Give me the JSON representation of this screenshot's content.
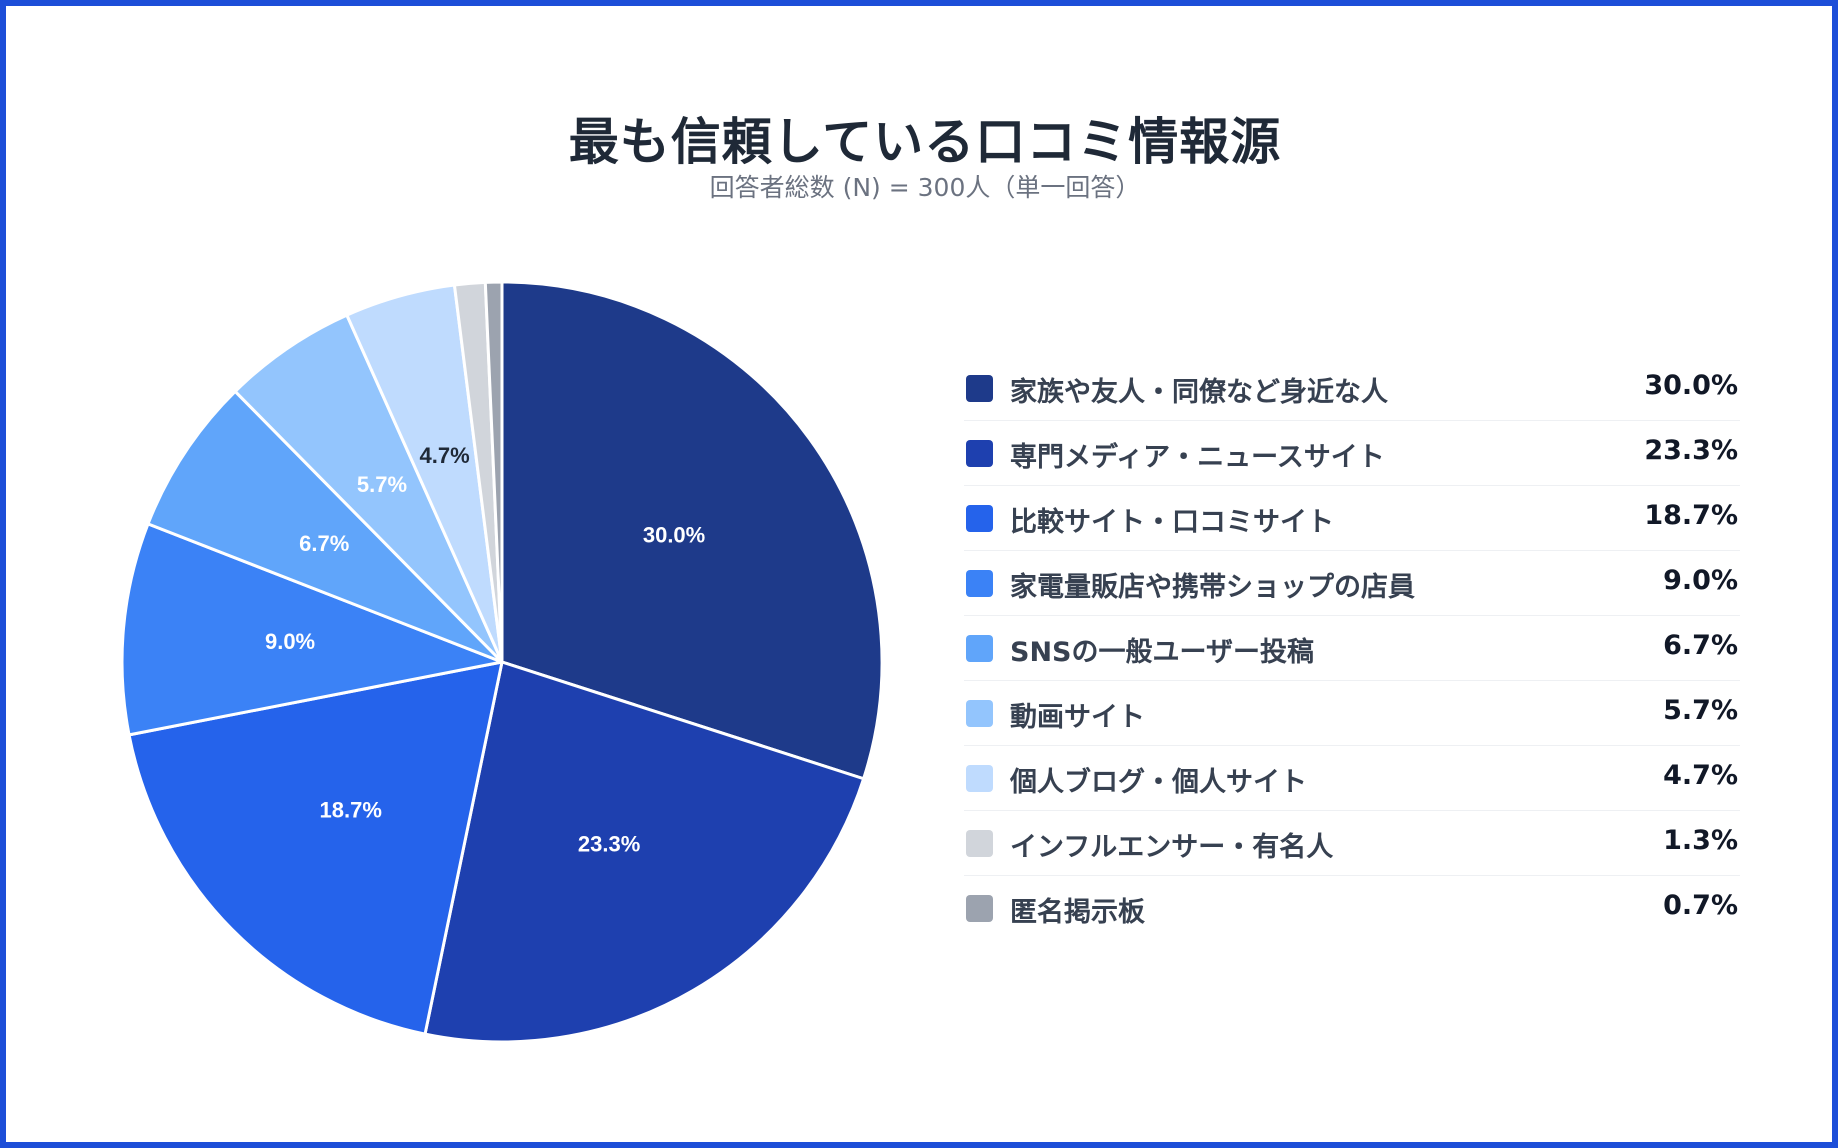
{
  "chart_data": {
    "type": "pie",
    "title": "最も信頼している口コミ情報源",
    "subtitle": "回答者総数 (N) = 300人（単一回答）",
    "categories": [
      "家族や友人・同僚など身近な人",
      "専門メディア・ニュースサイト",
      "比較サイト・口コミサイト",
      "家電量販店や携帯ショップの店員",
      "SNSの一般ユーザー投稿",
      "動画サイト",
      "個人ブログ・個人サイト",
      "インフルエンサー・有名人",
      "匿名掲示板"
    ],
    "values": [
      30.0,
      23.3,
      18.7,
      9.0,
      6.7,
      5.7,
      4.7,
      1.3,
      0.7
    ],
    "value_labels": [
      "30.0%",
      "23.3%",
      "18.7%",
      "9.0%",
      "6.7%",
      "5.7%",
      "4.7%",
      "1.3%",
      "0.7%"
    ],
    "slice_labels_shown": [
      true,
      true,
      true,
      true,
      true,
      true,
      true,
      false,
      false
    ],
    "colors": [
      "#1e3a8a",
      "#1e40af",
      "#2563eb",
      "#3b82f6",
      "#60a5fa",
      "#93c5fd",
      "#bfdbfe",
      "#d1d5db",
      "#9ca3af"
    ],
    "label_colors": [
      "#ffffff",
      "#ffffff",
      "#ffffff",
      "#ffffff",
      "#ffffff",
      "#ffffff",
      "#1f2937",
      "#1f2937",
      "#1f2937"
    ],
    "legend_position": "right"
  },
  "colors": {
    "frame_border": "#1d4ed8",
    "title": "#1f2937",
    "subtitle": "#6b7280"
  }
}
